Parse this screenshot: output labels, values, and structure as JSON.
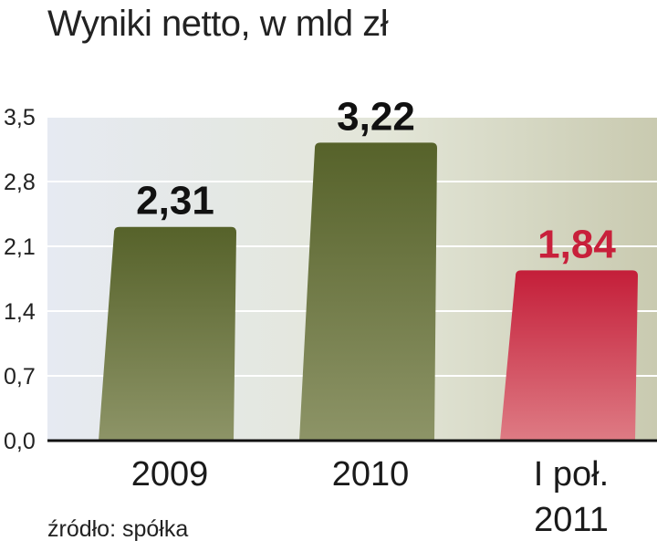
{
  "chart_data": {
    "type": "bar",
    "title": "Wyniki netto, w mld zł",
    "categories": [
      "2009",
      "2010",
      "I poł.\n2011"
    ],
    "values": [
      2.31,
      3.22,
      1.84
    ],
    "value_labels": [
      "2,31",
      "3,22",
      "1,84"
    ],
    "bar_colors": [
      "#5f6b31",
      "#5f6b31",
      "#c8203b"
    ],
    "value_label_colors": [
      "#111111",
      "#111111",
      "#c8203b"
    ],
    "y_ticks": [
      "0,0",
      "0,7",
      "1,4",
      "2,1",
      "2,8",
      "3,5"
    ],
    "ylim": [
      0,
      3.5
    ],
    "grid": true,
    "source": "źródło: spółka"
  }
}
